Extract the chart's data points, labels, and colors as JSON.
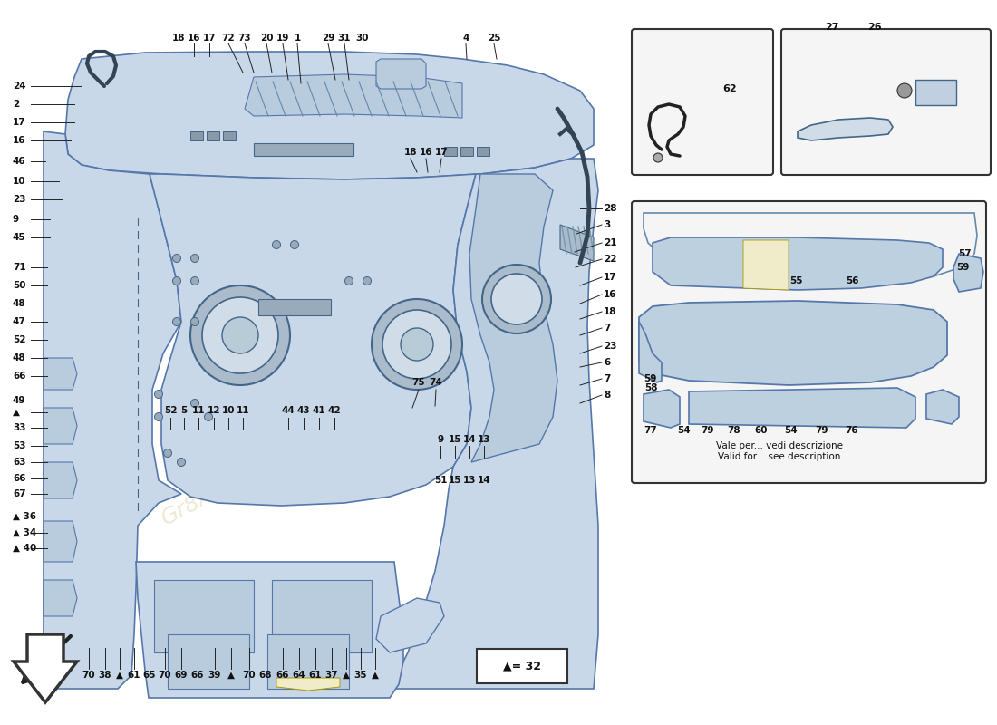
{
  "bg_color": "#ffffff",
  "blue_light": "#c8d8e8",
  "blue_mid": "#b8ccdd",
  "blue_dark": "#8aaabb",
  "blue_panel": "#bdd0e0",
  "yellow": "#f0ecca",
  "line_color": "#222222",
  "text_color": "#111111",
  "inset_bg": "#f5f5f5",
  "watermark": "#c8b870",
  "note_it": "Vale per... vedi descrizione",
  "note_en": "Valid for... see description",
  "legend": "▲= 32"
}
